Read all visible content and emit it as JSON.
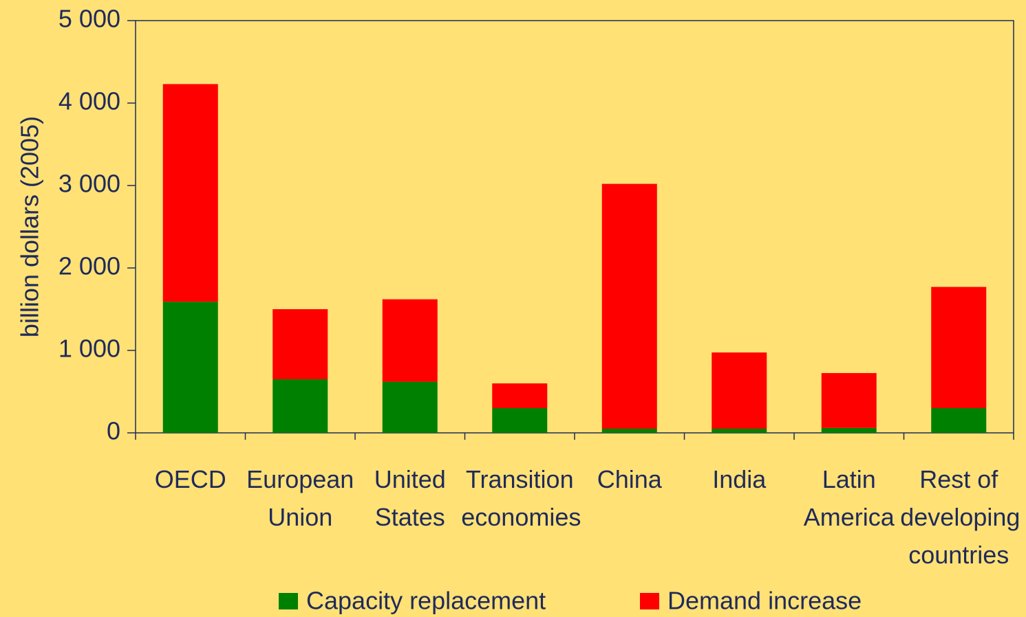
{
  "chart_data": {
    "type": "stacked_bar",
    "y_label": "billion dollars (2005)",
    "categories": [
      "OECD",
      "European\nUnion",
      "United\nStates",
      "Transition\neconomies",
      "China",
      "India",
      "Latin\nAmerica",
      "Rest of\ndeveloping\ncountries"
    ],
    "series": [
      {
        "name": "Capacity replacement",
        "color": "#008000",
        "values": [
          1590,
          650,
          620,
          300,
          50,
          50,
          60,
          300
        ]
      },
      {
        "name": "Demand increase",
        "color": "#ff0000",
        "values": [
          2640,
          850,
          1000,
          300,
          2970,
          925,
          665,
          1470
        ]
      }
    ],
    "ylim": [
      0,
      5000
    ],
    "yticks": [
      0,
      {
        "value": 1000,
        "label": "1 000"
      },
      {
        "value": 2000,
        "label": "2 000"
      },
      {
        "value": 3000,
        "label": "3 000"
      },
      {
        "value": 4000,
        "label": "4 000"
      },
      {
        "value": 5000,
        "label": "5 000"
      }
    ]
  }
}
